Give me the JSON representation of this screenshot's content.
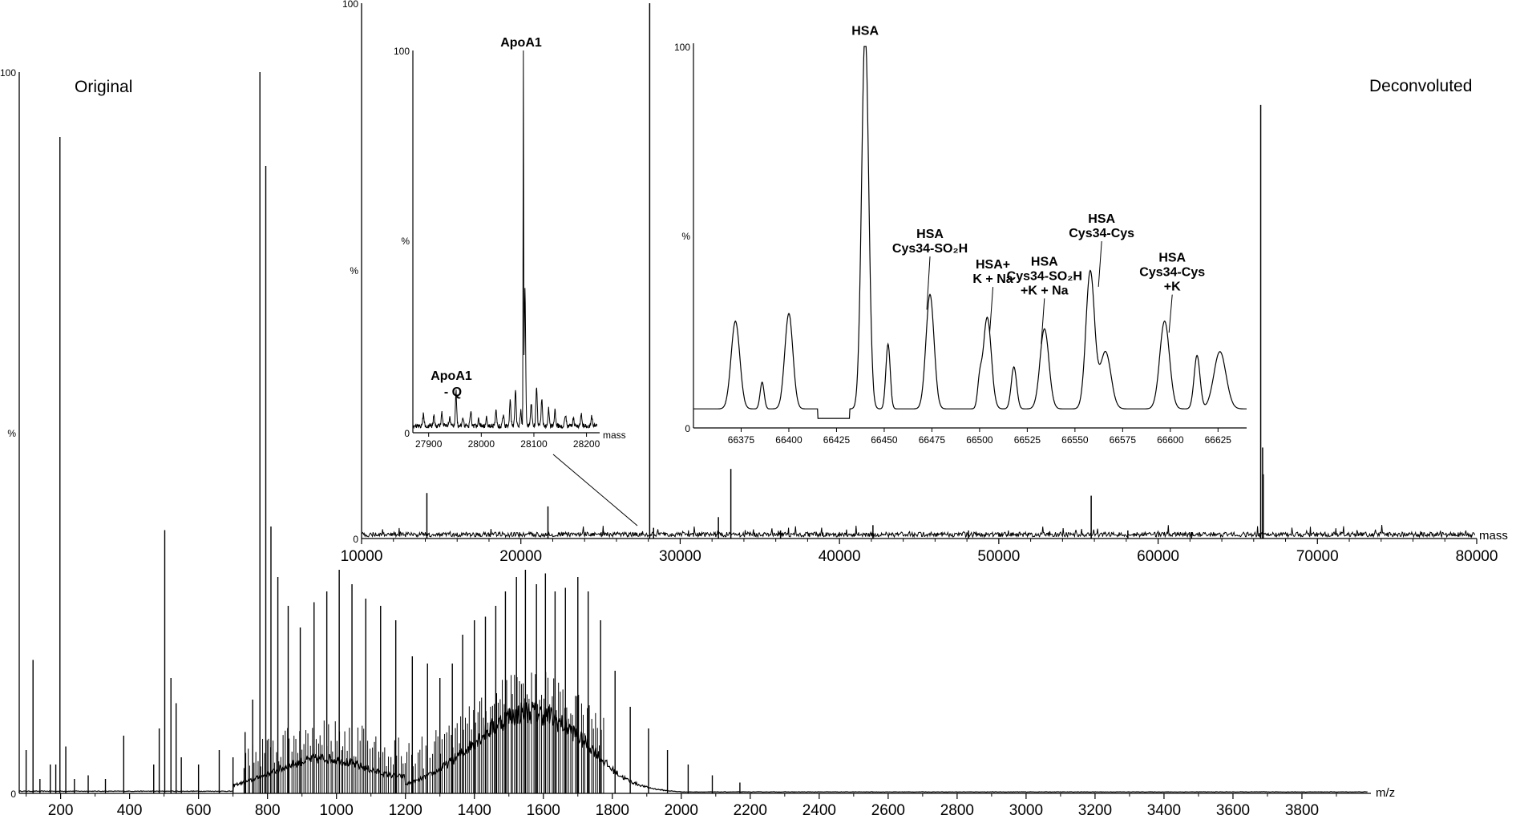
{
  "chart_data": [
    {
      "id": "original",
      "type": "line",
      "label": "Original",
      "xlabel": "m/z",
      "ylabel": "%",
      "y_top_label": "100",
      "y_zero_label": "0",
      "xlim": [
        80,
        4000
      ],
      "ylim": [
        0,
        100
      ],
      "x_ticks": [
        200,
        400,
        600,
        800,
        1000,
        1200,
        1400,
        1600,
        1800,
        2000,
        2200,
        2400,
        2600,
        2800,
        3000,
        3200,
        3400,
        3600,
        3800
      ],
      "peaks": [
        {
          "x": 100,
          "y": 6
        },
        {
          "x": 120,
          "y": 18.5
        },
        {
          "x": 140,
          "y": 2
        },
        {
          "x": 170,
          "y": 4
        },
        {
          "x": 186,
          "y": 4
        },
        {
          "x": 198,
          "y": 91
        },
        {
          "x": 215,
          "y": 6.5
        },
        {
          "x": 240,
          "y": 2
        },
        {
          "x": 280,
          "y": 2.5
        },
        {
          "x": 330,
          "y": 2
        },
        {
          "x": 383,
          "y": 8
        },
        {
          "x": 470,
          "y": 4
        },
        {
          "x": 486,
          "y": 9
        },
        {
          "x": 502,
          "y": 36.5
        },
        {
          "x": 520,
          "y": 16
        },
        {
          "x": 535,
          "y": 12.5
        },
        {
          "x": 550,
          "y": 5
        },
        {
          "x": 600,
          "y": 4
        },
        {
          "x": 660,
          "y": 6
        },
        {
          "x": 700,
          "y": 5
        },
        {
          "x": 735,
          "y": 8.5
        },
        {
          "x": 757,
          "y": 13
        },
        {
          "x": 778,
          "y": 100
        },
        {
          "x": 795,
          "y": 87
        },
        {
          "x": 810,
          "y": 37
        },
        {
          "x": 830,
          "y": 30
        },
        {
          "x": 860,
          "y": 26
        },
        {
          "x": 895,
          "y": 23
        },
        {
          "x": 935,
          "y": 26.5
        },
        {
          "x": 972,
          "y": 28
        },
        {
          "x": 1008,
          "y": 31
        },
        {
          "x": 1045,
          "y": 29
        },
        {
          "x": 1085,
          "y": 27
        },
        {
          "x": 1128,
          "y": 26
        },
        {
          "x": 1172,
          "y": 24
        },
        {
          "x": 1220,
          "y": 19
        },
        {
          "x": 1264,
          "y": 18
        },
        {
          "x": 1300,
          "y": 16
        },
        {
          "x": 1336,
          "y": 18
        },
        {
          "x": 1366,
          "y": 22
        },
        {
          "x": 1400,
          "y": 24
        },
        {
          "x": 1432,
          "y": 24.5
        },
        {
          "x": 1462,
          "y": 26
        },
        {
          "x": 1490,
          "y": 28
        },
        {
          "x": 1522,
          "y": 30
        },
        {
          "x": 1548,
          "y": 31
        },
        {
          "x": 1580,
          "y": 29
        },
        {
          "x": 1606,
          "y": 30.5
        },
        {
          "x": 1634,
          "y": 28
        },
        {
          "x": 1664,
          "y": 28.5
        },
        {
          "x": 1700,
          "y": 30
        },
        {
          "x": 1730,
          "y": 28
        },
        {
          "x": 1766,
          "y": 24
        },
        {
          "x": 1808,
          "y": 17
        },
        {
          "x": 1852,
          "y": 12
        },
        {
          "x": 1905,
          "y": 9
        },
        {
          "x": 1960,
          "y": 6
        },
        {
          "x": 2020,
          "y": 4
        },
        {
          "x": 2090,
          "y": 2.5
        },
        {
          "x": 2170,
          "y": 1.5
        }
      ]
    },
    {
      "id": "deconvoluted",
      "type": "line",
      "label": "Deconvoluted",
      "xlabel": "mass",
      "ylabel": "%",
      "y_top_label": "100",
      "y_zero_label": "0",
      "xlim": [
        10000,
        80000
      ],
      "ylim": [
        0,
        100
      ],
      "x_ticks": [
        10000,
        20000,
        30000,
        40000,
        50000,
        60000,
        70000,
        80000
      ],
      "peaks": [
        {
          "x": 14100,
          "y": 8.5
        },
        {
          "x": 21700,
          "y": 6
        },
        {
          "x": 28085,
          "y": 100
        },
        {
          "x": 28330,
          "y": 2
        },
        {
          "x": 32400,
          "y": 4
        },
        {
          "x": 33180,
          "y": 13
        },
        {
          "x": 36300,
          "y": 1.5
        },
        {
          "x": 42100,
          "y": 2.5
        },
        {
          "x": 48100,
          "y": 1.5
        },
        {
          "x": 55800,
          "y": 8
        },
        {
          "x": 58100,
          "y": 1.5
        },
        {
          "x": 62100,
          "y": 1.2
        },
        {
          "x": 66440,
          "y": 81
        },
        {
          "x": 66560,
          "y": 17
        },
        {
          "x": 66600,
          "y": 12
        }
      ]
    },
    {
      "id": "inset-apoa1",
      "type": "line",
      "xlabel": "mass",
      "ylabel": "%",
      "y_top_label": "100",
      "y_zero_label": "0",
      "xlim": [
        27870,
        28225
      ],
      "ylim": [
        0,
        100
      ],
      "x_ticks": [
        27900,
        28000,
        28100,
        28200
      ],
      "annotations": [
        {
          "text": "ApoA1",
          "x": 28080
        },
        {
          "text": "ApoA1",
          "text2": "- Q",
          "x": 27952
        }
      ],
      "peaks": [
        {
          "x": 27890,
          "y": 3
        },
        {
          "x": 27910,
          "y": 2.5
        },
        {
          "x": 27925,
          "y": 3.5
        },
        {
          "x": 27940,
          "y": 2
        },
        {
          "x": 27952,
          "y": 9
        },
        {
          "x": 27965,
          "y": 2.5
        },
        {
          "x": 27980,
          "y": 4
        },
        {
          "x": 27995,
          "y": 2
        },
        {
          "x": 28010,
          "y": 2.5
        },
        {
          "x": 28028,
          "y": 4
        },
        {
          "x": 28042,
          "y": 3
        },
        {
          "x": 28055,
          "y": 7
        },
        {
          "x": 28065,
          "y": 9
        },
        {
          "x": 28075,
          "y": 4
        },
        {
          "x": 28080,
          "y": 100
        },
        {
          "x": 28083,
          "y": 36
        },
        {
          "x": 28095,
          "y": 6
        },
        {
          "x": 28105,
          "y": 10
        },
        {
          "x": 28115,
          "y": 7
        },
        {
          "x": 28128,
          "y": 4.5
        },
        {
          "x": 28140,
          "y": 4
        },
        {
          "x": 28160,
          "y": 3
        },
        {
          "x": 28175,
          "y": 2
        },
        {
          "x": 28190,
          "y": 3
        },
        {
          "x": 28210,
          "y": 2.5
        }
      ]
    },
    {
      "id": "inset-hsa",
      "type": "line",
      "xlabel": "",
      "ylabel": "%",
      "y_top_label": "100",
      "y_zero_label": "0",
      "xlim": [
        66350,
        66640
      ],
      "ylim": [
        0,
        100
      ],
      "x_ticks": [
        66375,
        66400,
        66425,
        66450,
        66475,
        66500,
        66525,
        66550,
        66575,
        66600,
        66625
      ],
      "annotations": [
        {
          "lines": [
            "HSA"
          ]
        },
        {
          "lines": [
            "HSA",
            "Cys34-SO₂H"
          ]
        },
        {
          "lines": [
            "HSA+",
            "K + Na"
          ]
        },
        {
          "lines": [
            "HSA",
            "Cys34-SO₂H",
            "+K + Na"
          ]
        },
        {
          "lines": [
            "HSA",
            "Cys34-Cys"
          ]
        },
        {
          "lines": [
            "HSA",
            "Cys34-Cys",
            "+K"
          ]
        }
      ],
      "peaks": [
        {
          "x": 66372,
          "y": 23,
          "w": 3.2
        },
        {
          "x": 66386,
          "y": 7,
          "w": 1.5
        },
        {
          "x": 66400,
          "y": 25,
          "w": 3.0
        },
        {
          "x": 66440,
          "y": 100,
          "w": 2.6
        },
        {
          "x": 66452,
          "y": 17,
          "w": 1.6
        },
        {
          "x": 66474,
          "y": 30,
          "w": 3.0
        },
        {
          "x": 66500,
          "y": 6,
          "w": 1.5
        },
        {
          "x": 66504,
          "y": 24,
          "w": 3.0
        },
        {
          "x": 66518,
          "y": 11,
          "w": 2.0
        },
        {
          "x": 66534,
          "y": 21,
          "w": 3.3
        },
        {
          "x": 66558,
          "y": 36,
          "w": 3.2
        },
        {
          "x": 66566,
          "y": 15,
          "w": 4.0
        },
        {
          "x": 66597,
          "y": 23,
          "w": 3.6
        },
        {
          "x": 66614,
          "y": 14,
          "w": 2.2
        },
        {
          "x": 66626,
          "y": 15,
          "w": 4.5
        }
      ]
    }
  ]
}
